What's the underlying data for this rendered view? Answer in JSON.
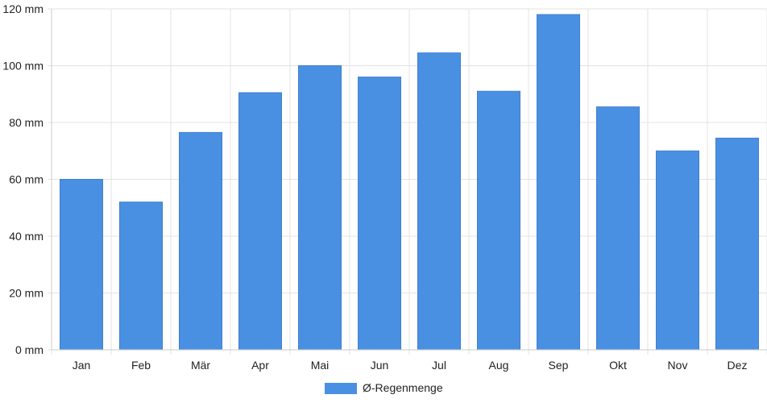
{
  "chart_data": {
    "type": "bar",
    "categories": [
      "Jan",
      "Feb",
      "Mär",
      "Apr",
      "Mai",
      "Jun",
      "Jul",
      "Aug",
      "Sep",
      "Okt",
      "Nov",
      "Dez"
    ],
    "series": [
      {
        "name": "Ø-Regenmenge",
        "color": "#4a90e2",
        "values": [
          60,
          52,
          76.5,
          90.5,
          100,
          96,
          104.5,
          91,
          118,
          85.5,
          70,
          74.5
        ]
      }
    ],
    "y_ticks": [
      "0 mm",
      "20 mm",
      "40 mm",
      "60 mm",
      "80 mm",
      "100 mm",
      "120 mm"
    ],
    "ylim": [
      0,
      120
    ],
    "y_unit": "mm",
    "grid": true,
    "legend_position": "bottom-center",
    "title": "",
    "xlabel": "",
    "ylabel": ""
  }
}
